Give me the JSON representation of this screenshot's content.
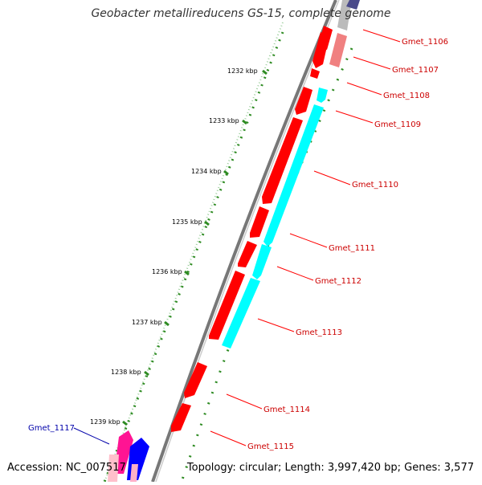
{
  "title": "Geobacter metallireducens GS-15, complete genome",
  "footer": {
    "accession": "Accession: NC_007517",
    "summary": "Topology: circular; Length: 3,997,420 bp; Genes: 3,577"
  },
  "colors": {
    "backbone": "#777777",
    "forward_gene": "#ff0000",
    "reverse_gene": "#00ffff",
    "magenta_gene": "#ff1493",
    "blue_gene": "#0000ff",
    "tick": "#2e8b22",
    "label_red": "#cc0000",
    "label_blue": "#0000aa"
  },
  "scale_labels": [
    "1232 kbp",
    "1233 kbp",
    "1234 kbp",
    "1235 kbp",
    "1236 kbp",
    "1237 kbp",
    "1238 kbp",
    "1239 kbp"
  ],
  "gene_labels": [
    "Gmet_1106",
    "Gmet_1107",
    "Gmet_1108",
    "Gmet_1109",
    "Gmet_1110",
    "Gmet_1111",
    "Gmet_1112",
    "Gmet_1113",
    "Gmet_1114",
    "Gmet_1115",
    "Gmet_1117"
  ]
}
